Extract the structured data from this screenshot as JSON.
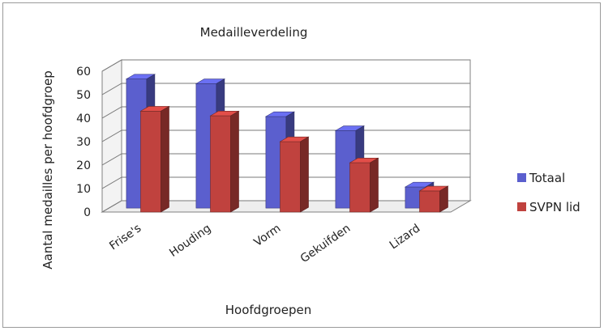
{
  "chart_data": {
    "type": "bar",
    "title": "Medailleverdeling",
    "xlabel": "Hoofdgroepen",
    "ylabel": "Aantal medailles per hoofdgroep",
    "categories": [
      "Frise's",
      "Houding",
      "Vorm",
      "Gekuifden",
      "Lizard"
    ],
    "series": [
      {
        "name": "Totaal",
        "values": [
          55,
          53,
          39,
          33,
          9
        ],
        "color": "#5b5fce"
      },
      {
        "name": "SVPN lid",
        "values": [
          43,
          41,
          30,
          21,
          9
        ],
        "color": "#c0423e"
      }
    ],
    "yticks": [
      "0",
      "10",
      "20",
      "30",
      "40",
      "50",
      "60"
    ],
    "ylim": [
      0,
      60
    ],
    "grid": true,
    "legend_position": "right",
    "three_d": true
  }
}
